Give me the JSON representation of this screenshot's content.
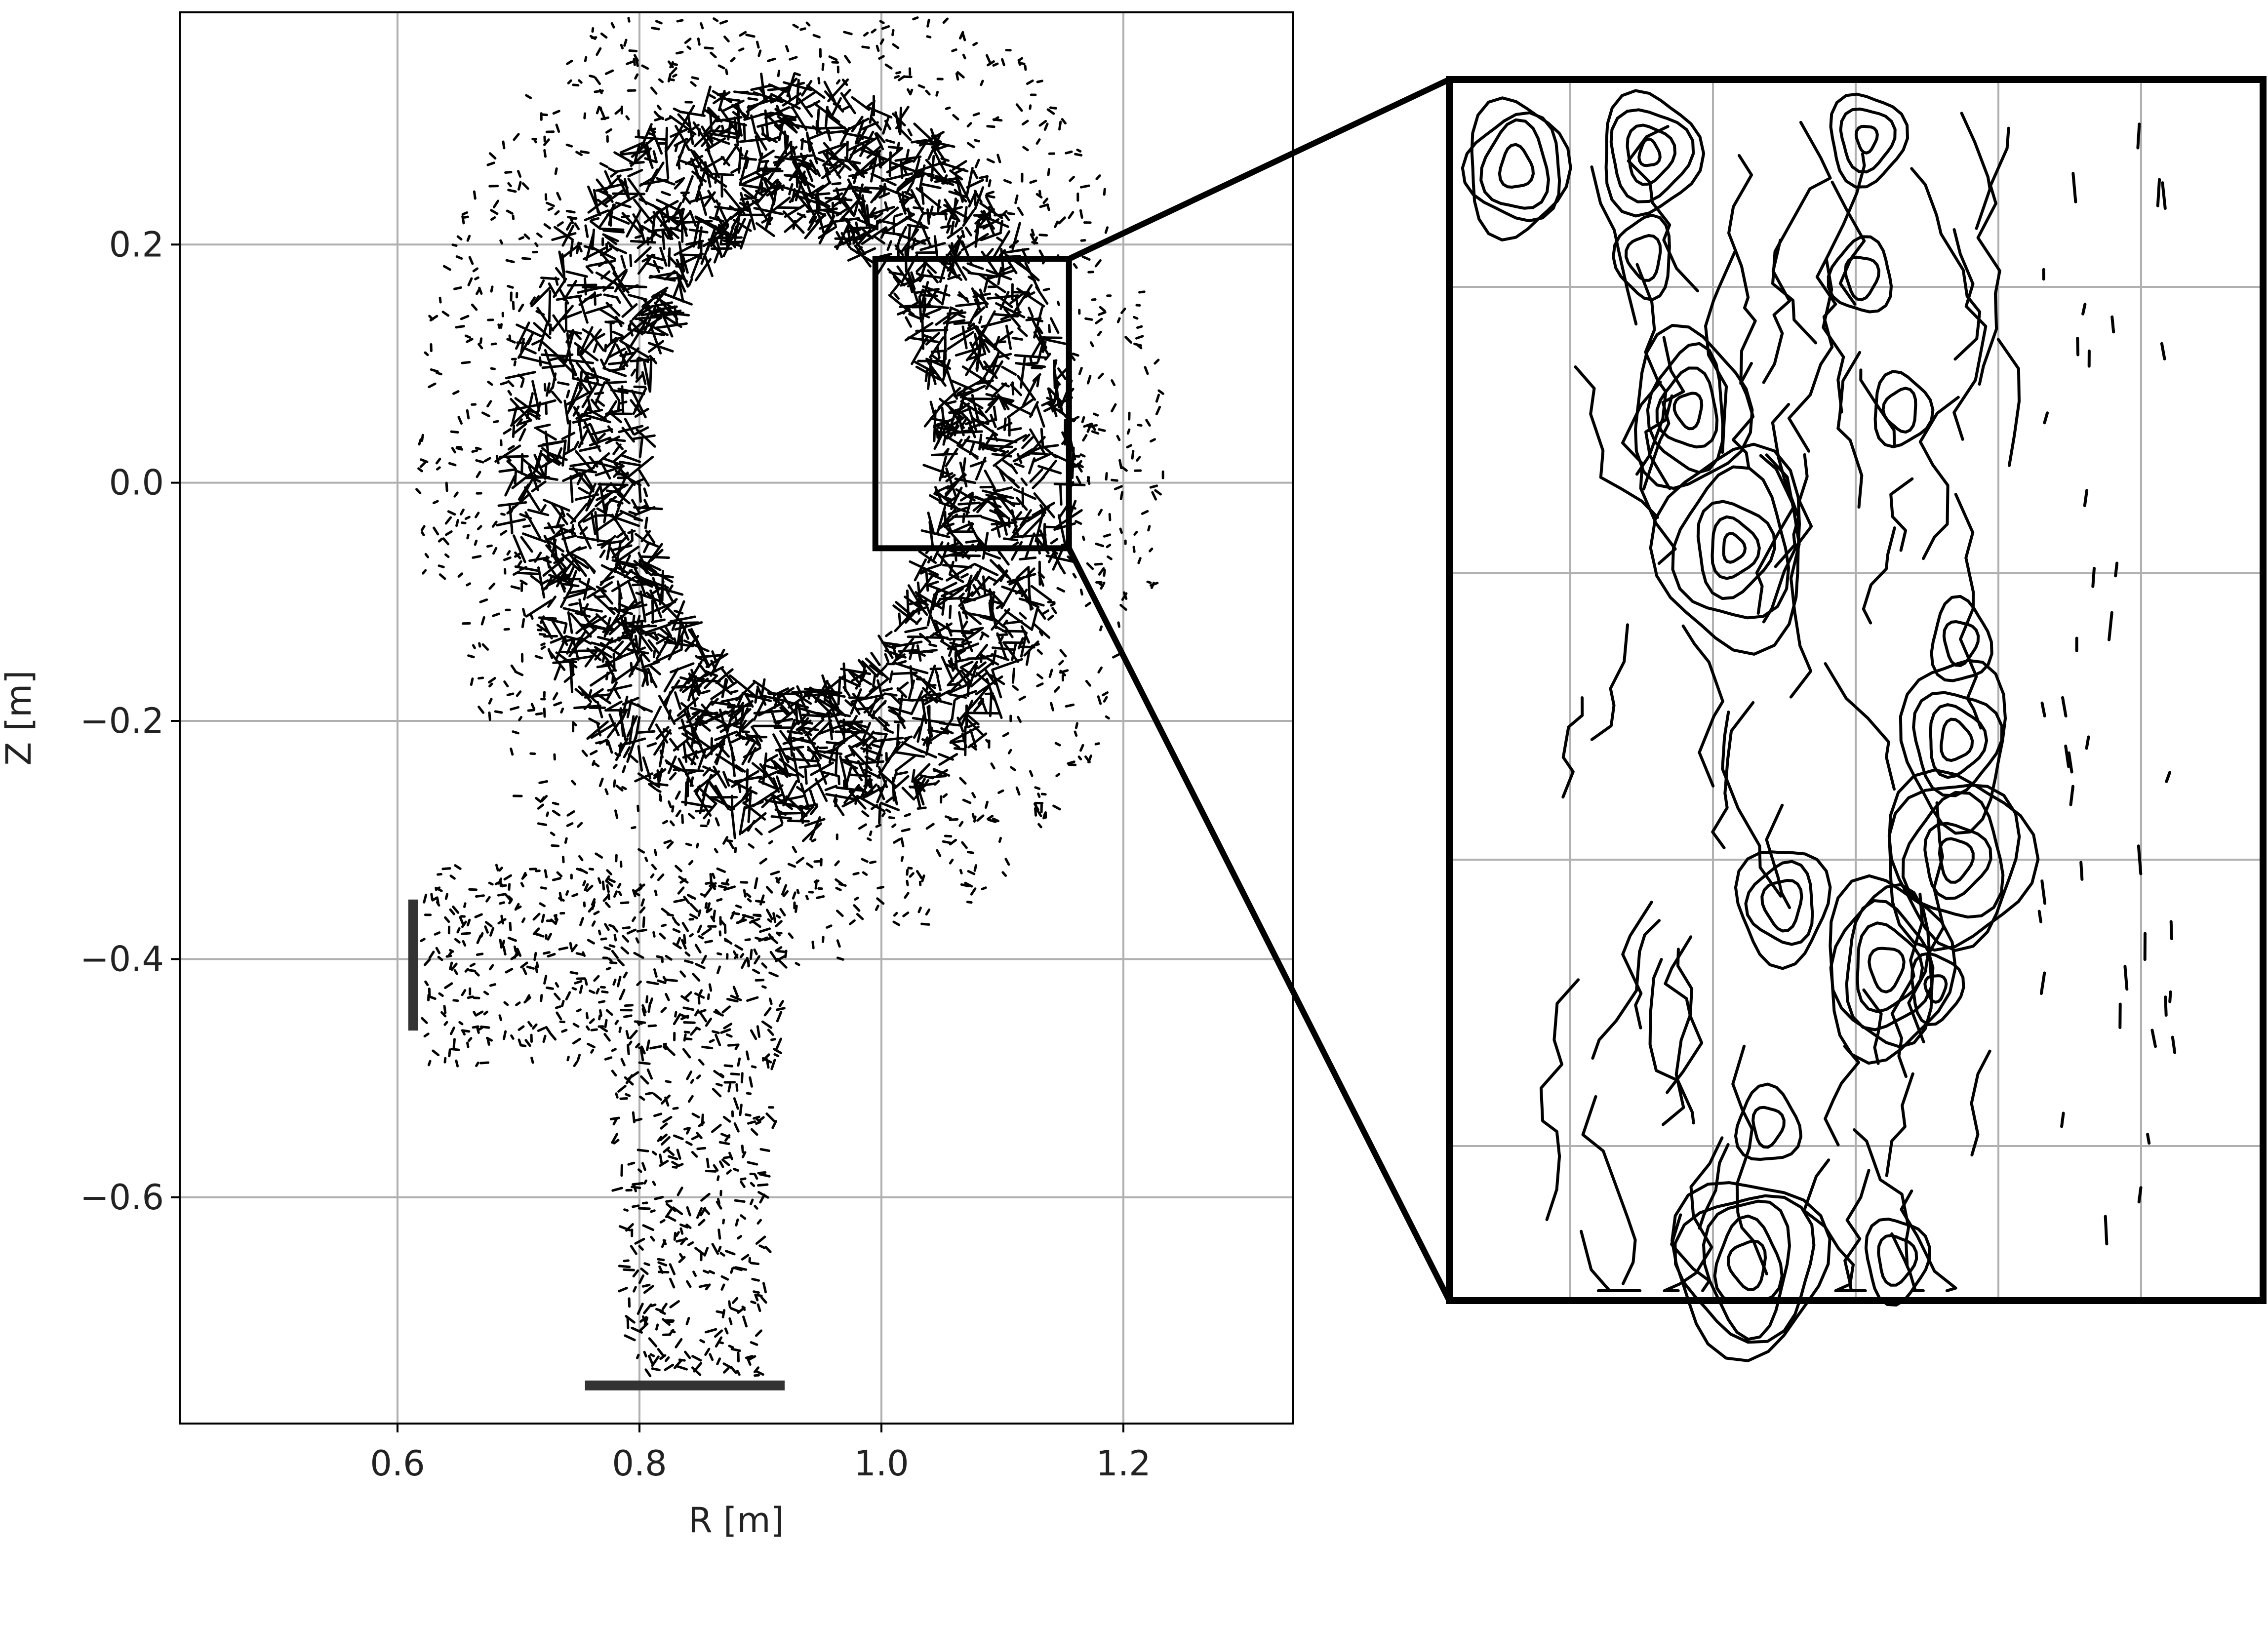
{
  "chart_data": {
    "type": "scatter",
    "xlabel": "R [m]",
    "ylabel": "Z [m]",
    "xlim": [
      0.42,
      1.34
    ],
    "ylim": [
      -0.79,
      0.395
    ],
    "xticks": [
      0.6,
      0.8,
      1.0,
      1.2
    ],
    "xtick_labels": [
      "0.6",
      "0.8",
      "1.0",
      "1.2"
    ],
    "yticks": [
      0.2,
      0.0,
      -0.2,
      -0.4,
      -0.6
    ],
    "ytick_labels": [
      "0.2",
      "0.0",
      "−0.2",
      "−0.4",
      "−0.6"
    ],
    "grid": true,
    "series_color": "#000000",
    "wall_color": "#333333",
    "ring": {
      "center": [
        0.925,
        0.02
      ],
      "radius_r": [
        0.12,
        0.235
      ],
      "radius_z": [
        0.195,
        0.315
      ]
    },
    "walls": [
      {
        "r": [
          0.613,
          0.613
        ],
        "z": [
          -0.35,
          -0.46
        ]
      },
      {
        "r": [
          0.755,
          0.92
        ],
        "z": [
          -0.758,
          -0.758
        ]
      }
    ],
    "zoom_box": {
      "r": [
        0.995,
        1.155
      ],
      "z": [
        -0.055,
        0.188
      ]
    },
    "inset": {
      "grid_cols": 5,
      "grid_rows": 5,
      "contour_color": "#000000"
    }
  }
}
